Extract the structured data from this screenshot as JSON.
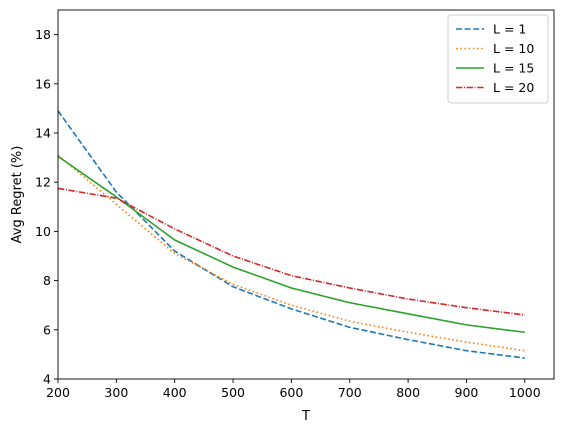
{
  "chart_data": {
    "type": "line",
    "xlabel": "T",
    "ylabel": "Avg Regret (%)",
    "xlim": [
      200,
      1050
    ],
    "ylim": [
      4,
      19
    ],
    "x_ticks": [
      200,
      300,
      400,
      500,
      600,
      700,
      800,
      900,
      1000
    ],
    "y_ticks": [
      4,
      6,
      8,
      10,
      12,
      14,
      16,
      18
    ],
    "grid": false,
    "legend_position": "top-right",
    "x": [
      200,
      300,
      400,
      500,
      600,
      700,
      800,
      900,
      1000
    ],
    "series": [
      {
        "name": "L = 1",
        "color": "#1f77b4",
        "dash": "dashed",
        "values": [
          14.9,
          11.6,
          9.2,
          7.75,
          6.85,
          6.1,
          5.6,
          5.15,
          4.85
        ]
      },
      {
        "name": "L = 10",
        "color": "#ff7f0e",
        "dash": "dotted",
        "values": [
          13.1,
          11.1,
          9.1,
          7.85,
          7.0,
          6.35,
          5.9,
          5.5,
          5.15
        ]
      },
      {
        "name": "L = 15",
        "color": "#2ca02c",
        "dash": "solid",
        "values": [
          13.05,
          11.4,
          9.65,
          8.55,
          7.7,
          7.1,
          6.65,
          6.2,
          5.9
        ]
      },
      {
        "name": "L = 20",
        "color": "#d62728",
        "dash": "dashdot",
        "values": [
          11.75,
          11.35,
          10.1,
          9.0,
          8.2,
          7.7,
          7.25,
          6.9,
          6.6
        ]
      }
    ]
  }
}
